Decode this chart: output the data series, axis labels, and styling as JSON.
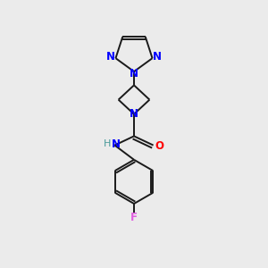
{
  "bg_color": "#ebebeb",
  "bond_color": "#1a1a1a",
  "n_color": "#0000ff",
  "o_color": "#ff0000",
  "f_color": "#e060e0",
  "h_color": "#4a9a9a",
  "figsize": [
    3.0,
    3.0
  ],
  "dpi": 100,
  "lw": 1.4,
  "fs": 8.5,
  "xlim": [
    0,
    10
  ],
  "ylim": [
    0,
    10
  ]
}
